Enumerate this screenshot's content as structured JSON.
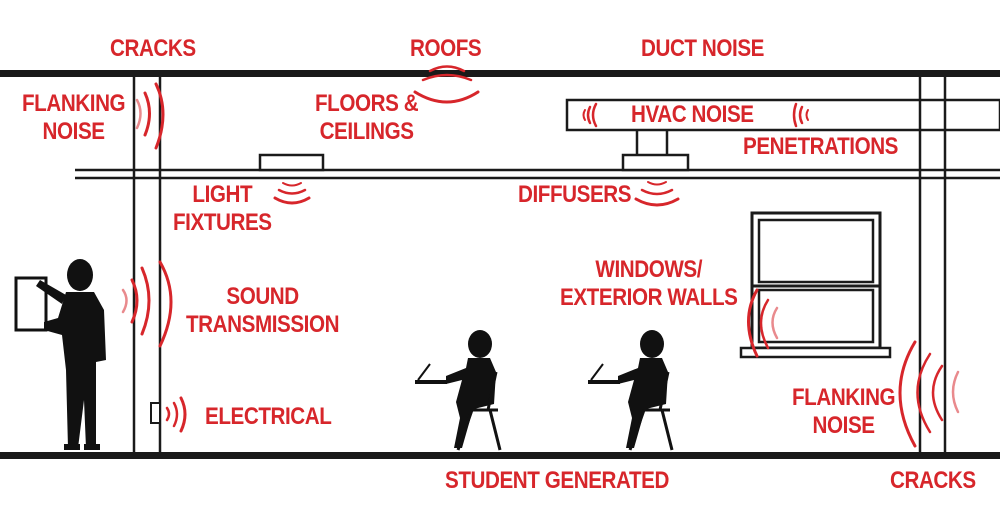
{
  "colors": {
    "accent": "#d7262b",
    "line": "#1a1a1a",
    "wave": "#d7262b",
    "wave_light": "#e98a8d"
  },
  "labels": {
    "cracks_top_left": "CRACKS",
    "roofs": "ROOFS",
    "duct_noise": "DUCT NOISE",
    "flanking_noise_left": [
      "FLANKING",
      "NOISE"
    ],
    "floors_ceilings": [
      "FLOORS &",
      "CEILINGS"
    ],
    "hvac_noise": "HVAC NOISE",
    "penetrations": "PENETRATIONS",
    "light_fixtures": [
      "LIGHT",
      "FIXTURES"
    ],
    "diffusers": "DIFFUSERS",
    "windows_exterior_walls": [
      "WINDOWS/",
      "EXTERIOR WALLS"
    ],
    "sound_transmission": [
      "SOUND",
      "TRANSMISSION"
    ],
    "electrical": "ELECTRICAL",
    "flanking_noise_right": [
      "FLANKING",
      "NOISE"
    ],
    "student_generated": "STUDENT GENERATED",
    "cracks_bottom_right": "CRACKS"
  },
  "icons": [
    "teacher-figure",
    "student-figure",
    "student-figure",
    "window",
    "sound-wave-icon",
    "electrical-outlet-icon"
  ]
}
